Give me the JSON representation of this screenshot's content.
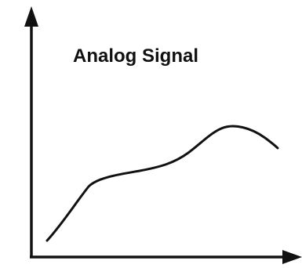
{
  "diagram": {
    "title": "Analog Signal",
    "colors": {
      "stroke": "#111111",
      "background": "#ffffff"
    }
  }
}
